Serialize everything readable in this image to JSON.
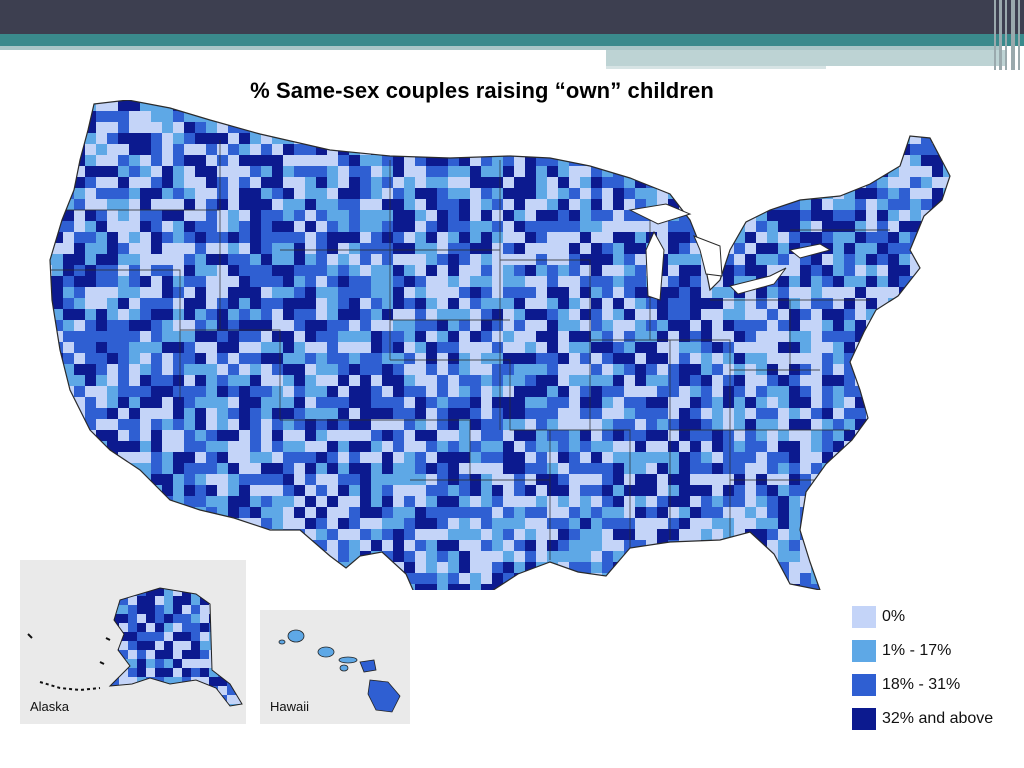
{
  "title": "% Same-sex couples raising “own” children",
  "colors": {
    "bin_0": "#c4d4f8",
    "bin_1": "#5ea8e6",
    "bin_2": "#2f5fd2",
    "bin_3": "#0c1a8f",
    "land_outline": "#2a2a2a",
    "inset_bg": "#eaeaea"
  },
  "legend": [
    {
      "label": "0%",
      "color": "#c4d4f8"
    },
    {
      "label": "1% - 17%",
      "color": "#5ea8e6"
    },
    {
      "label": "18% - 31%",
      "color": "#2f5fd2"
    },
    {
      "label": "32% and above",
      "color": "#0c1a8f"
    }
  ],
  "insets": {
    "alaska": {
      "label": "Alaska"
    },
    "hawaii": {
      "label": "Hawaii"
    }
  }
}
